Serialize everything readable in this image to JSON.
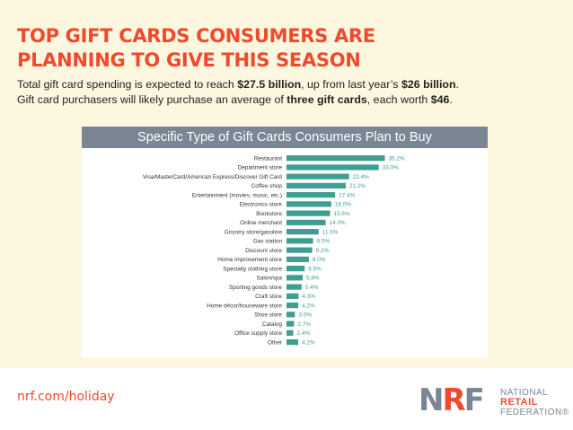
{
  "header": {
    "title_line1": "TOP GIFT CARDS CONSUMERS ARE",
    "title_line2": "PLANNING TO GIVE THIS SEASON",
    "sub1_pre": "Total gift card spending is expected to reach ",
    "sub1_b1": "$27.5 billion",
    "sub1_mid": ", up from last year’s ",
    "sub1_b2": "$26 billion",
    "sub1_end": ".",
    "sub2_pre": "Gift card purchasers will likely purchase an average of ",
    "sub2_b1": "three gift cards",
    "sub2_mid": ", each worth ",
    "sub2_b2": "$46",
    "sub2_end": "."
  },
  "chart_data": {
    "type": "bar",
    "orientation": "horizontal",
    "title": "Specific Type of Gift Cards Consumers Plan to Buy",
    "categories": [
      "Restaurant",
      "Department store",
      "Visa/MasterCard/American Express/Discover Gift Card",
      "Coffee shop",
      "Entertainment (movies, music, etc.)",
      "Electronics store",
      "Bookstore",
      "Online merchant",
      "Grocery store/gasoline",
      "Gas station",
      "Discount store",
      "Home improvement store",
      "Specialty clothing store",
      "Salon/spa",
      "Sporting goods store",
      "Craft store",
      "Home décor/houseware store",
      "Shoe store",
      "Catalog",
      "Office supply store",
      "Other"
    ],
    "values": [
      35.2,
      33.0,
      22.4,
      21.2,
      17.4,
      16.0,
      15.6,
      14.0,
      11.5,
      9.5,
      9.2,
      8.0,
      6.5,
      5.8,
      5.4,
      4.3,
      4.2,
      3.0,
      2.7,
      2.4,
      4.2
    ],
    "value_labels": [
      "35.2%",
      "33.0%",
      "22.4%",
      "21.2%",
      "17.4%",
      "16.0%",
      "15.6%",
      "14.0%",
      "11.5%",
      "9.5%",
      "9.2%",
      "8.0%",
      "6.5%",
      "5.8%",
      "5.4%",
      "4.3%",
      "4.2%",
      "3.0%",
      "2.7%",
      "2.4%",
      "4.2%"
    ],
    "xlim": [
      0,
      36
    ],
    "bar_color": "#3f9e91",
    "label_color": "#3f9e91",
    "grid": false
  },
  "footer": {
    "link": "nrf.com/holiday",
    "logo_n": "N",
    "logo_r": "R",
    "logo_f": "F",
    "logo_word1": "NATIONAL",
    "logo_word2": "RETAIL",
    "logo_word3": "FEDERATION",
    "logo_reg": "®"
  },
  "colors": {
    "accent": "#ee4a2e",
    "background": "#fdf7e0",
    "header_band": "#7a8694",
    "logo_gray": "#7a8694"
  }
}
